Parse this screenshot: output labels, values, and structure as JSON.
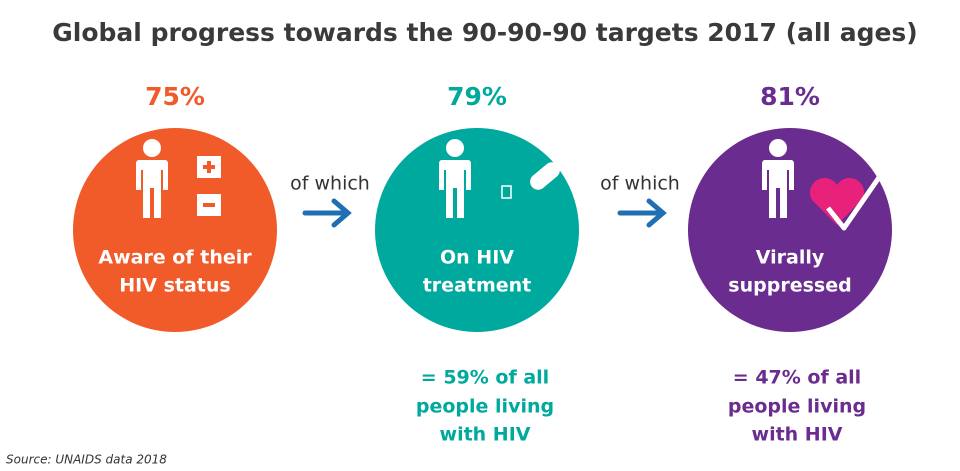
{
  "title": "Global progress towards the 90-90-90 targets 2017 (all ages)",
  "stages": [
    {
      "percent": "75%",
      "label": [
        "Aware of their",
        "HIV status"
      ],
      "color": "#f15a29"
    },
    {
      "percent": "79%",
      "label": [
        "On HIV",
        "treatment"
      ],
      "color": "#00a99d",
      "note": [
        "= 59% of all",
        "people living",
        "with HIV"
      ]
    },
    {
      "percent": "81%",
      "label": [
        "Virally",
        "suppressed"
      ],
      "color": "#6a2c8f",
      "note": [
        "= 47% of all",
        "people living",
        "with HIV"
      ]
    }
  ],
  "connectors": [
    "of which",
    "of which"
  ],
  "source": "Source: UNAIDS data 2018"
}
